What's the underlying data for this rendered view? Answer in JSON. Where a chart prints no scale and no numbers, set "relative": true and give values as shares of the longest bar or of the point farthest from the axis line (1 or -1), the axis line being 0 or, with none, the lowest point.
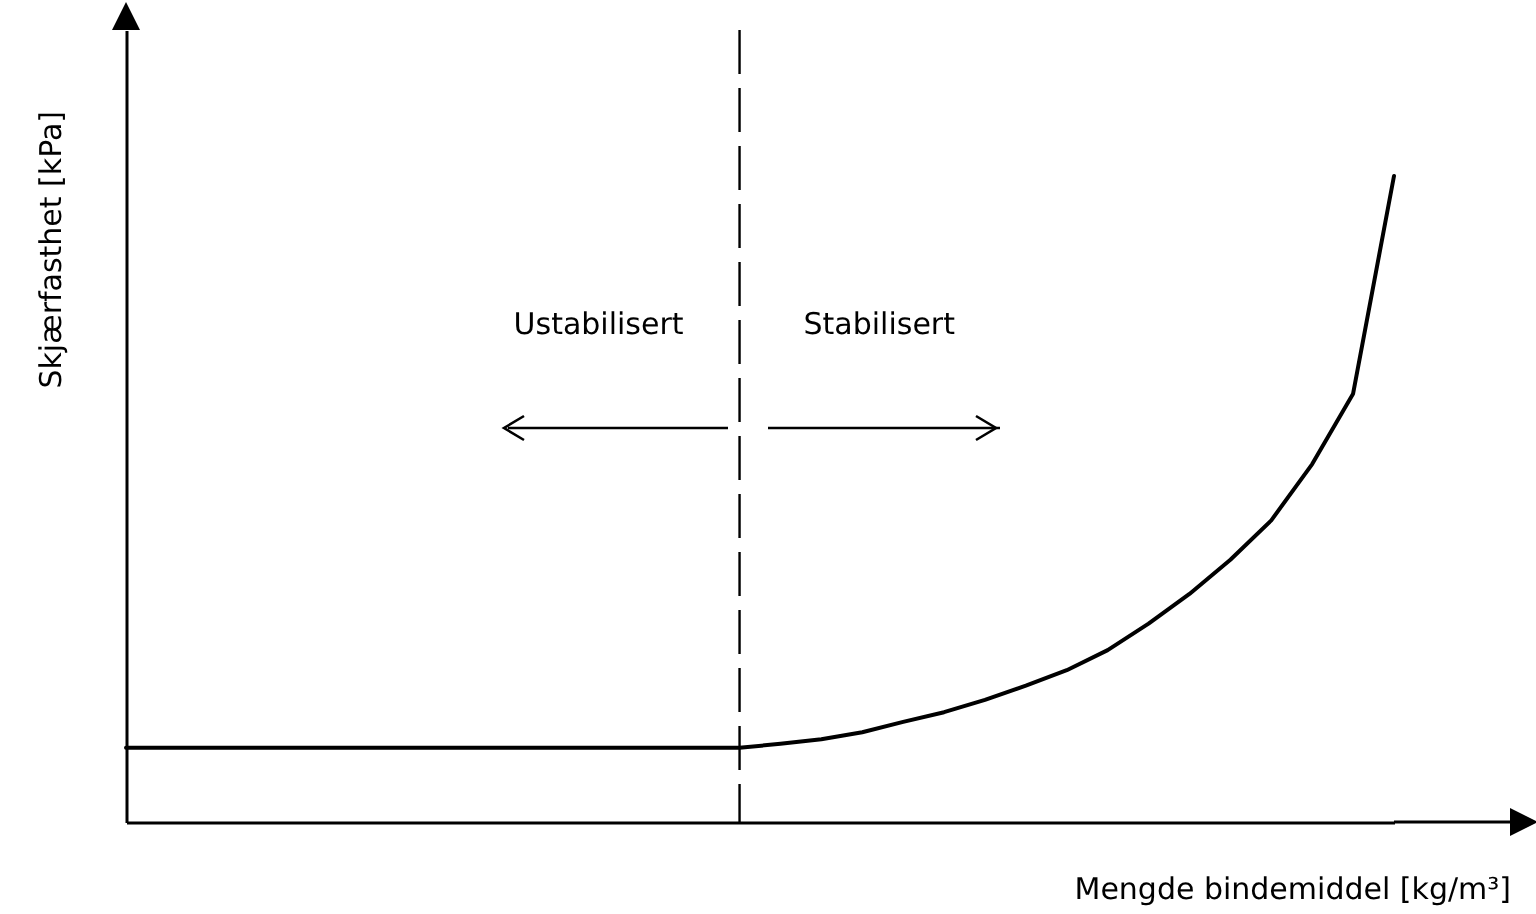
{
  "chart_data": {
    "type": "line",
    "relative": true,
    "xlabel": "Mengde bindemiddel [kg/m³]",
    "ylabel": "Skjærfasthet [kPa]",
    "annotations": [
      "Ustabilisert",
      "Stabilisert"
    ],
    "categories": [
      null,
      null,
      null,
      null,
      null,
      null,
      null,
      null,
      null,
      null,
      null,
      null,
      null,
      null,
      null,
      null,
      null,
      null,
      null,
      null,
      null,
      null,
      null,
      null,
      null,
      null,
      null,
      null,
      null,
      null,
      null,
      null
    ],
    "series": [
      {
        "color": "#000000",
        "values": [
          0.115,
          0.115,
          0.115,
          0.115,
          0.115,
          0.115,
          0.115,
          0.115,
          0.115,
          0.115,
          0.115,
          0.115,
          0.115,
          0.115,
          0.115,
          0.115,
          0.121,
          0.128,
          0.139,
          0.155,
          0.17,
          0.189,
          0.211,
          0.235,
          0.266,
          0.307,
          0.353,
          0.406,
          0.467,
          0.554,
          0.663,
          1
        ]
      }
    ]
  }
}
